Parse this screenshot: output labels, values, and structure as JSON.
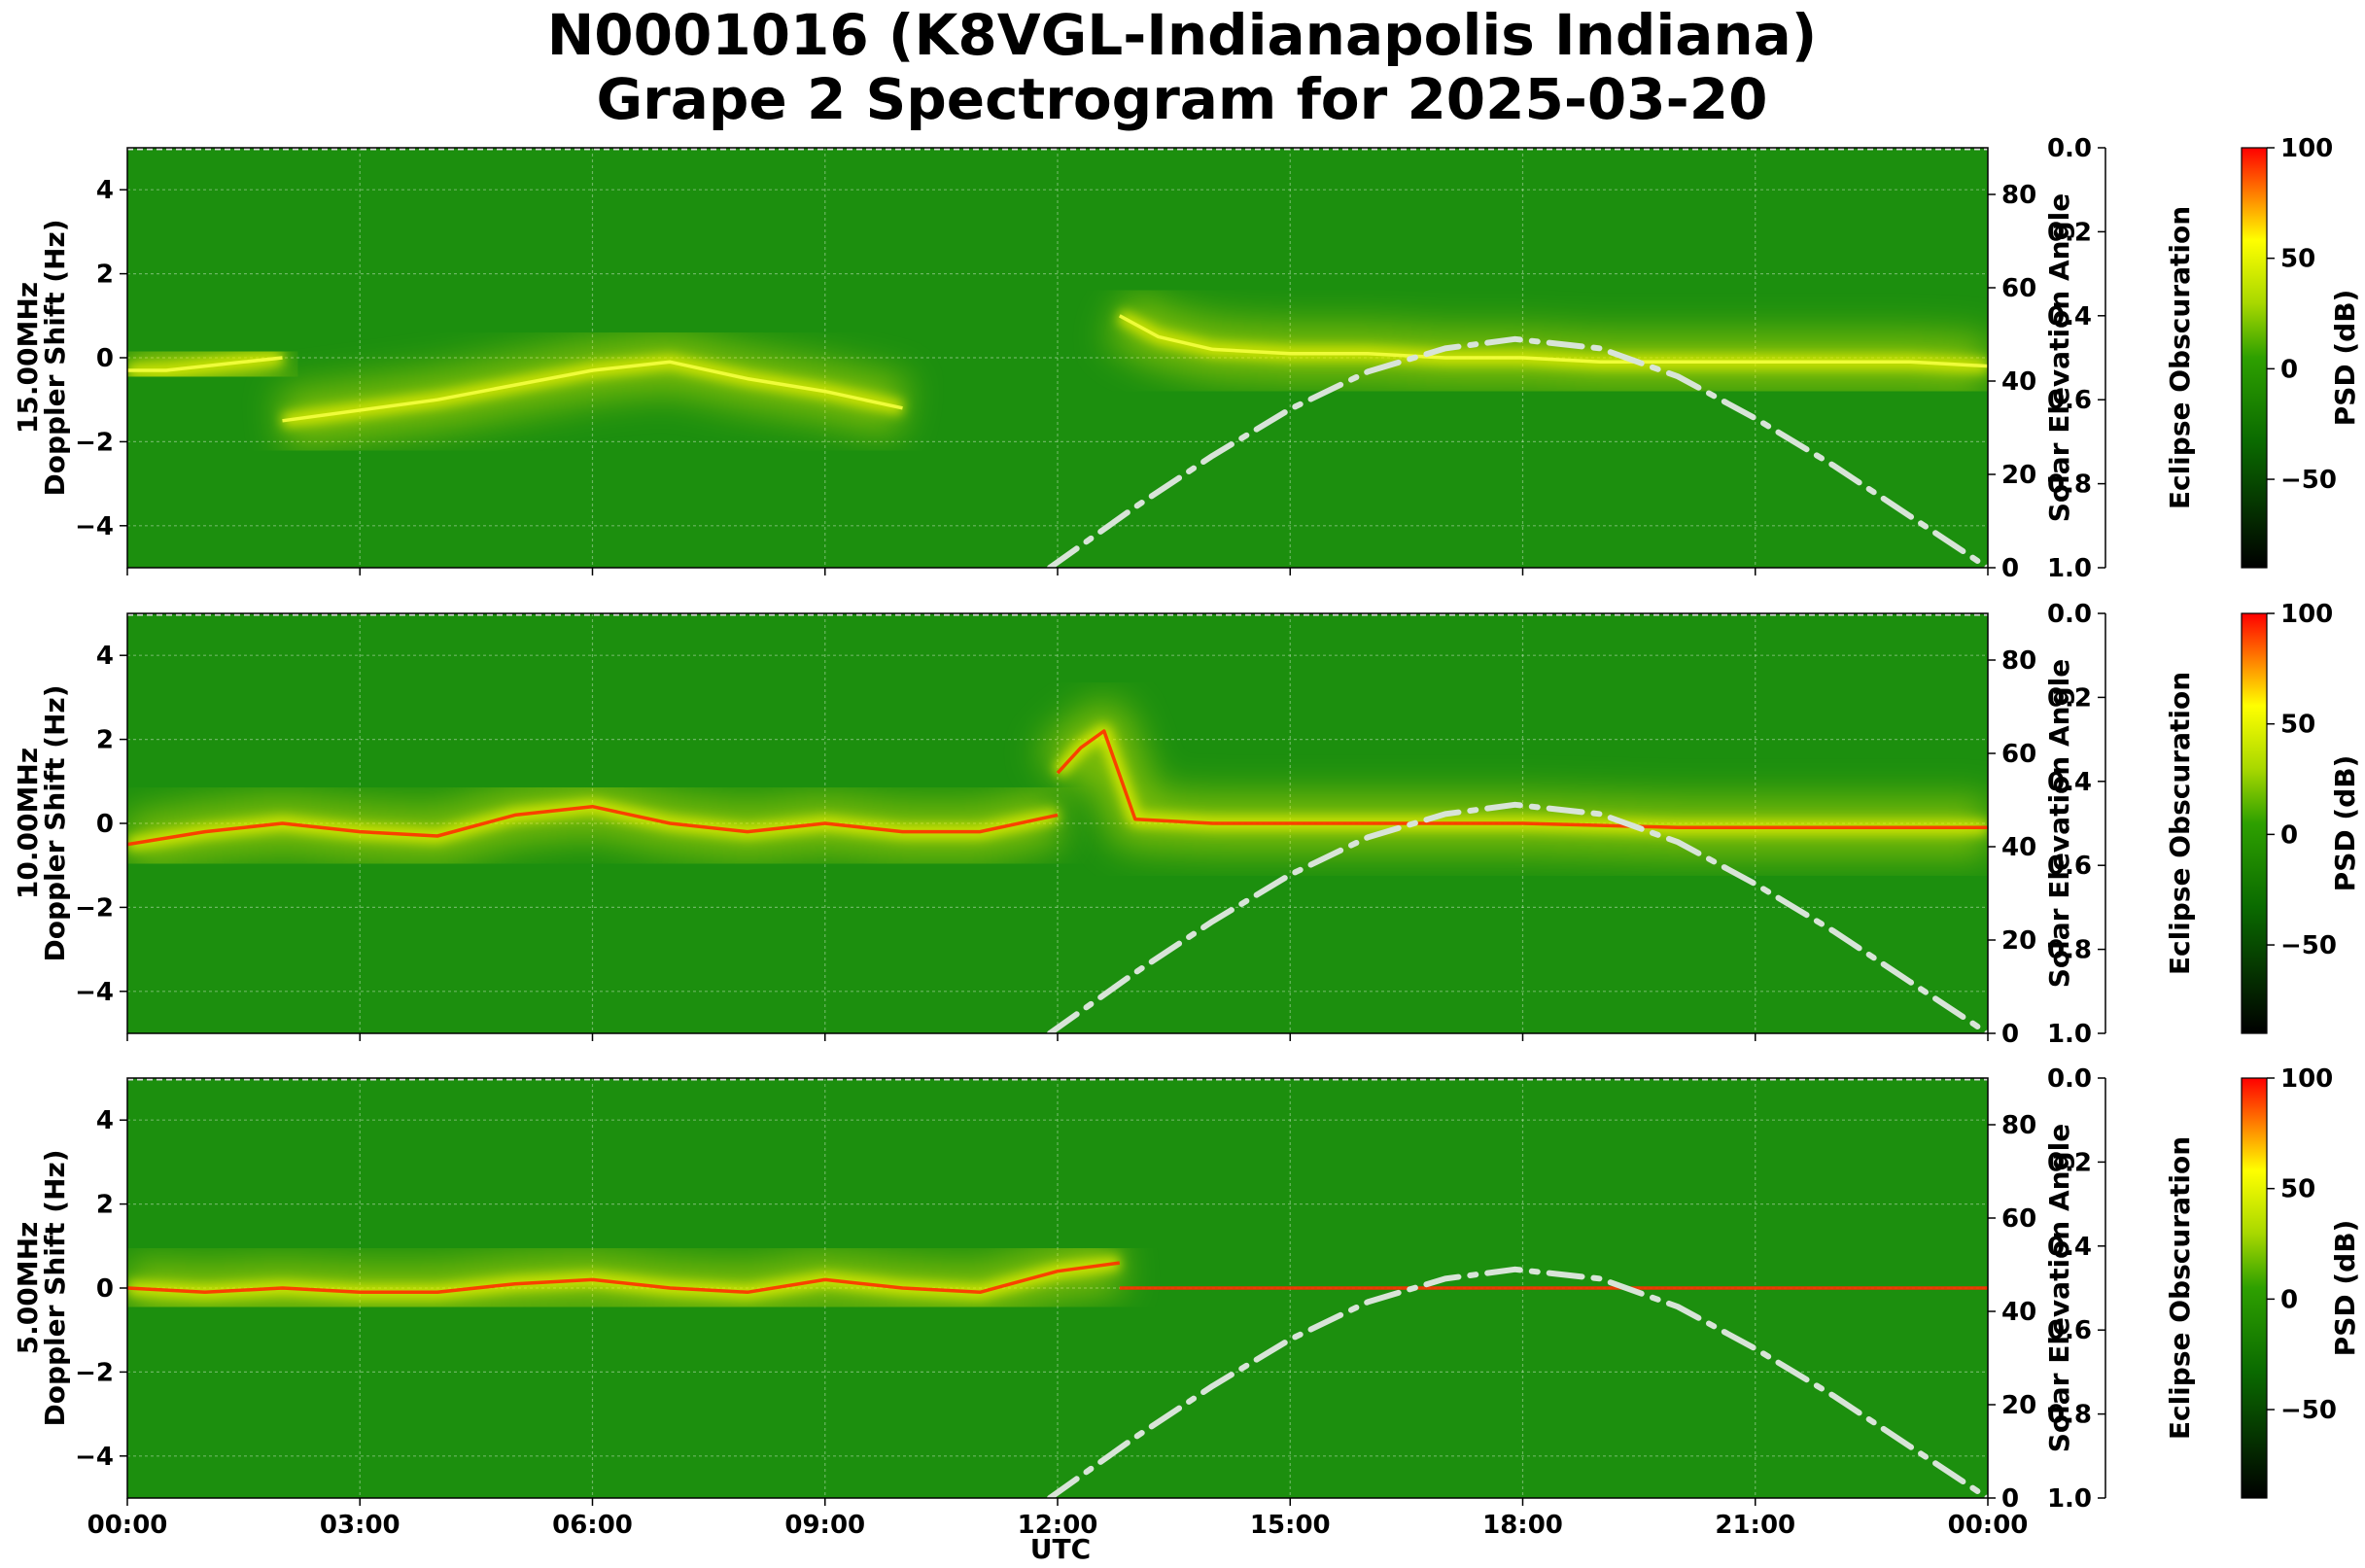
{
  "chart_data": {
    "type": "heatmap",
    "title": "N0001016 (K8VGL-Indianapolis Indiana)",
    "subtitle": "Grape 2 Spectrogram for 2025-03-20",
    "xlabel": "UTC",
    "x_ticks": [
      "00:00",
      "03:00",
      "06:00",
      "09:00",
      "12:00",
      "15:00",
      "18:00",
      "21:00",
      "00:00"
    ],
    "ylabel_left": "Doppler Shift (Hz)",
    "ylim_left": [
      -5,
      5
    ],
    "yticks_left": [
      "4",
      "2",
      "0",
      "−2",
      "−4"
    ],
    "ylabel_right": "Solar Elevation Angle",
    "ylim_right": [
      0,
      90
    ],
    "yticks_right": [
      "0",
      "20",
      "40",
      "60",
      "80"
    ],
    "ylabel_eclipse": "Eclipse Obscuration",
    "ylim_eclipse": [
      0.0,
      1.0
    ],
    "yticks_eclipse": [
      "0.0",
      "0.2",
      "0.4",
      "0.6",
      "0.8",
      "1.0"
    ],
    "colorbar_label": "PSD (dB)",
    "colorbar_ticks": [
      "100",
      "50",
      "0",
      "−50"
    ],
    "colorbar_range": [
      -90,
      100
    ],
    "colors": {
      "background": "#1c8f0e",
      "signal": "#e8f000",
      "peak": "#ff3000",
      "solar_curve": "#d8e4d8"
    },
    "solar_elevation": {
      "style": "dash-dot",
      "hours": [
        11.9,
        13,
        14,
        15,
        16,
        17,
        17.9,
        19,
        20,
        21,
        22,
        23,
        24
      ],
      "degrees": [
        0,
        13,
        24,
        34,
        42,
        47,
        49,
        47,
        41,
        32,
        22,
        11,
        0
      ]
    },
    "panels": [
      {
        "name": "15.00MHz",
        "doppler_trace": [
          {
            "hours": [
              0,
              0.5,
              1,
              1.5,
              2
            ],
            "hz": [
              -0.3,
              -0.3,
              -0.2,
              -0.1,
              0
            ]
          },
          {
            "hours": [
              2,
              4,
              6,
              7,
              8,
              9,
              10
            ],
            "hz": [
              -1.5,
              -1,
              -0.3,
              -0.1,
              -0.5,
              -0.8,
              -1.2
            ]
          },
          {
            "hours": [
              12.8,
              13.3,
              14,
              15,
              16,
              17,
              18,
              19,
              20,
              21,
              22,
              23,
              24
            ],
            "hz": [
              1,
              0.5,
              0.2,
              0.1,
              0.1,
              0,
              0,
              -0.1,
              -0.1,
              -0.1,
              -0.1,
              -0.1,
              -0.2
            ]
          }
        ]
      },
      {
        "name": "10.00MHz",
        "doppler_trace": [
          {
            "hours": [
              0,
              1,
              2,
              3,
              4,
              5,
              6,
              7,
              8,
              9,
              10,
              11,
              12
            ],
            "hz": [
              -0.5,
              -0.2,
              0,
              -0.2,
              -0.3,
              0.2,
              0.4,
              0,
              -0.2,
              0,
              -0.2,
              -0.2,
              0.2
            ]
          },
          {
            "hours": [
              12,
              12.3,
              12.6,
              13,
              14,
              16,
              18,
              20,
              22,
              24
            ],
            "hz": [
              1.2,
              1.8,
              2.2,
              0.1,
              0,
              0,
              0,
              -0.1,
              -0.1,
              -0.1
            ]
          }
        ]
      },
      {
        "name": "5.00MHz",
        "doppler_trace": [
          {
            "hours": [
              0,
              1,
              2,
              3,
              4,
              5,
              6,
              7,
              8,
              9,
              10,
              11,
              12,
              12.8
            ],
            "hz": [
              0,
              -0.1,
              0,
              -0.1,
              -0.1,
              0.1,
              0.2,
              0,
              -0.1,
              0.2,
              0,
              -0.1,
              0.4,
              0.6
            ]
          },
          {
            "hours": [
              12.8,
              14,
              16,
              18,
              20,
              22,
              24
            ],
            "hz": [
              0,
              0,
              0,
              0,
              0,
              0,
              0
            ]
          }
        ]
      }
    ]
  }
}
